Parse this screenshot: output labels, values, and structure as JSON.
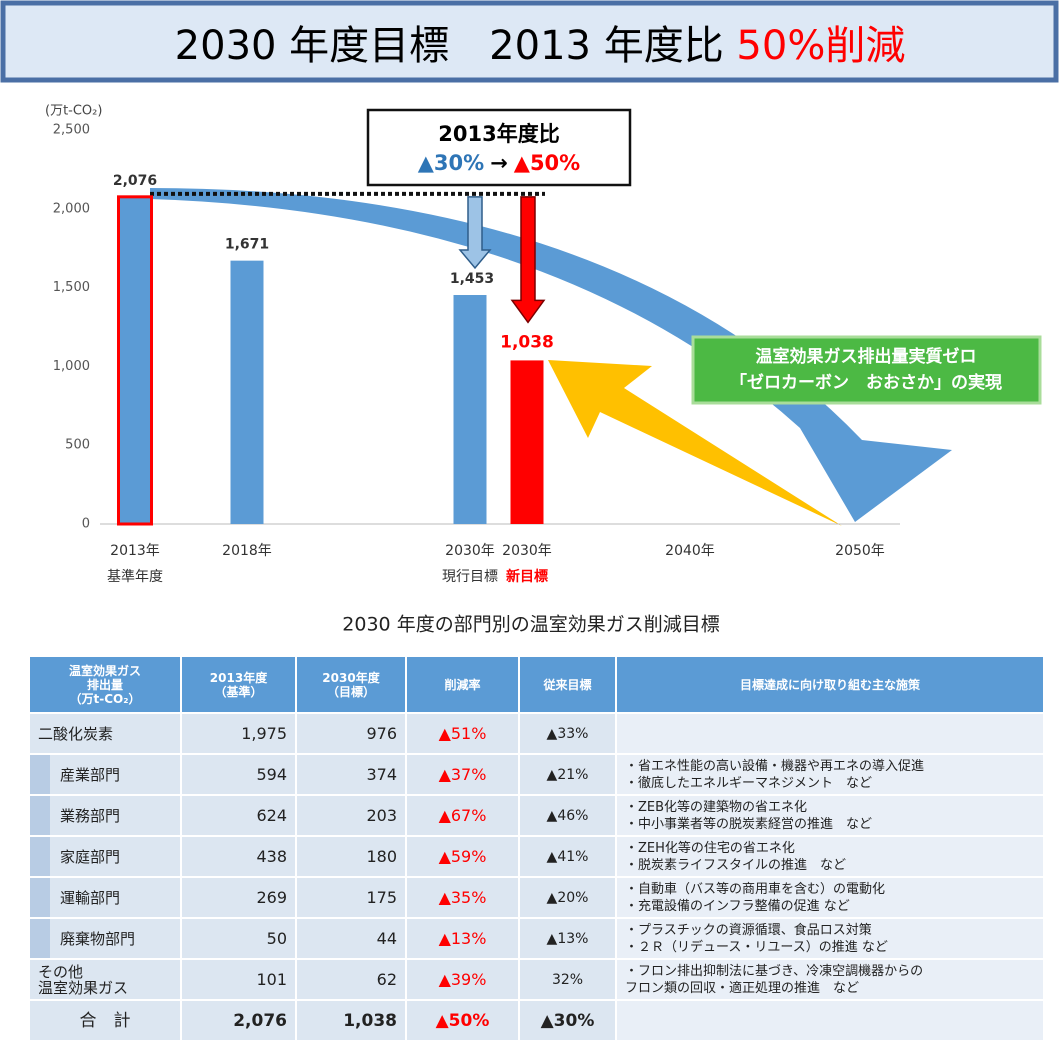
{
  "header": {
    "title": "2030 年度目標　2013 年度比 ",
    "title_highlight": "50%削減"
  },
  "chart_data": {
    "type": "bar",
    "ylabel": "(万t-CO₂)",
    "categories": [
      "2013年",
      "2018年",
      "2030年",
      "2030年",
      "2040年",
      "2050年"
    ],
    "sublabels": [
      "基準年度",
      null,
      "現行目標",
      "新目標",
      null,
      null
    ],
    "sublabel_colors": [
      "#333333",
      null,
      "#333333",
      "#ff0000",
      null,
      null
    ],
    "values": [
      2076,
      1671,
      1453,
      1038,
      null,
      null
    ],
    "value_labels": [
      "2,076",
      "1,671",
      "1,453",
      "1,038",
      null,
      null
    ],
    "colors": [
      "#5b9bd5",
      "#5b9bd5",
      "#5b9bd5",
      "#ff0000",
      null,
      null
    ],
    "edgecolors": [
      "#ff0000",
      null,
      null,
      null,
      null,
      null
    ],
    "ylim": [
      0,
      2500
    ],
    "yticks": [
      0,
      500,
      {
        "value": 1000,
        "label": "1,000"
      },
      {
        "value": 1500,
        "label": "1,500"
      },
      {
        "value": 2000,
        "label": "2,000"
      },
      {
        "value": 2500,
        "label": "2,500"
      }
    ],
    "grid": false,
    "annotation": {
      "title": "2013年度比",
      "from": "▲30%",
      "arrow": "→",
      "to": "▲50%"
    },
    "callout": [
      "温室効果ガス排出量実質ゼロ",
      "「ゼロカーボン　おおさか」の実現"
    ]
  },
  "table": {
    "title": "2030 年度の部門別の温室効果ガス削減目標",
    "headers": [
      [
        "温室効果ガス",
        "排出量",
        "（万t-CO₂）"
      ],
      [
        "2013年度",
        "（基準）"
      ],
      [
        "2030年度",
        "（目標）"
      ],
      [
        "削減率"
      ],
      [
        "従来目標"
      ],
      [
        "目標達成に向け取り組む主な施策"
      ]
    ],
    "rows": [
      {
        "name": [
          "二酸化炭素"
        ],
        "base": "1,975",
        "target": "976",
        "rate": "▲51%",
        "prev": "▲33%"
      },
      {
        "name": [
          "産業部門"
        ],
        "base": "594",
        "target": "374",
        "rate": "▲37%",
        "prev": "▲21%",
        "measures": [
          "・省エネ性能の高い設備・機器や再エネの導入促進",
          "・徹底したエネルギーマネジメント　など"
        ]
      },
      {
        "name": [
          "業務部門"
        ],
        "base": "624",
        "target": "203",
        "rate": "▲67%",
        "prev": "▲46%",
        "measures": [
          "・ZEB化等の建築物の省エネ化",
          "・中小事業者等の脱炭素経営の推進　など"
        ]
      },
      {
        "name": [
          "家庭部門"
        ],
        "base": "438",
        "target": "180",
        "rate": "▲59%",
        "prev": "▲41%",
        "measures": [
          "・ZEH化等の住宅の省エネ化",
          "・脱炭素ライフスタイルの推進　など"
        ]
      },
      {
        "name": [
          "運輸部門"
        ],
        "base": "269",
        "target": "175",
        "rate": "▲35%",
        "prev": "▲20%",
        "measures": [
          "・自動車（バス等の商用車を含む）の電動化",
          "・充電設備のインフラ整備の促進 など"
        ]
      },
      {
        "name": [
          "廃棄物部門"
        ],
        "base": "50",
        "target": "44",
        "rate": "▲13%",
        "prev": "▲13%",
        "measures": [
          "・プラスチックの資源循環、食品ロス対策",
          "・２Ｒ（リデュース・リユース）の推進 など"
        ]
      },
      {
        "name": [
          "その他",
          "温室効果ガス"
        ],
        "base": "101",
        "target": "62",
        "rate": "▲39%",
        "prev": "32%",
        "measures": [
          "・フロン排出抑制法に基づき、冷凍空調機器からの",
          "フロン類の回収・適正処理の推進　など"
        ]
      },
      {
        "name": [
          "合　計"
        ],
        "base": "2,076",
        "target": "1,038",
        "rate": "▲50%",
        "prev": "▲30%"
      }
    ]
  }
}
